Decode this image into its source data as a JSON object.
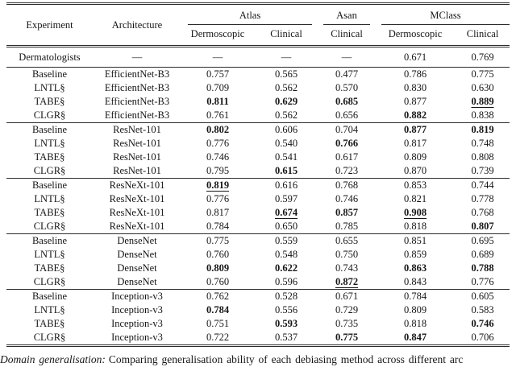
{
  "table": {
    "header": {
      "experiment": "Experiment",
      "architecture": "Architecture",
      "groups": [
        {
          "label": "Atlas",
          "subcolumns": [
            "Dermoscopic",
            "Clinical"
          ]
        },
        {
          "label": "Asan",
          "subcolumns": [
            "Clinical"
          ]
        },
        {
          "label": "MClass",
          "subcolumns": [
            "Dermoscopic",
            "Clinical"
          ]
        }
      ]
    },
    "dermatologists": {
      "experiment": "Dermatologists",
      "architecture": "—",
      "values": [
        {
          "text": "—",
          "bold": false,
          "underline": false
        },
        {
          "text": "—",
          "bold": false,
          "underline": false
        },
        {
          "text": "—",
          "bold": false,
          "underline": false
        },
        {
          "text": "0.671",
          "bold": false,
          "underline": false
        },
        {
          "text": "0.769",
          "bold": false,
          "underline": false
        }
      ]
    },
    "groups": [
      {
        "architecture": "EfficientNet-B3",
        "rows": [
          {
            "experiment": "Baseline",
            "values": [
              {
                "text": "0.757",
                "bold": false,
                "underline": false
              },
              {
                "text": "0.565",
                "bold": false,
                "underline": false
              },
              {
                "text": "0.477",
                "bold": false,
                "underline": false
              },
              {
                "text": "0.786",
                "bold": false,
                "underline": false
              },
              {
                "text": "0.775",
                "bold": false,
                "underline": false
              }
            ]
          },
          {
            "experiment": "LNTL§",
            "values": [
              {
                "text": "0.709",
                "bold": false,
                "underline": false
              },
              {
                "text": "0.562",
                "bold": false,
                "underline": false
              },
              {
                "text": "0.570",
                "bold": false,
                "underline": false
              },
              {
                "text": "0.830",
                "bold": false,
                "underline": false
              },
              {
                "text": "0.630",
                "bold": false,
                "underline": false
              }
            ]
          },
          {
            "experiment": "TABE§",
            "values": [
              {
                "text": "0.811",
                "bold": true,
                "underline": false
              },
              {
                "text": "0.629",
                "bold": true,
                "underline": false
              },
              {
                "text": "0.685",
                "bold": true,
                "underline": false
              },
              {
                "text": "0.877",
                "bold": false,
                "underline": false
              },
              {
                "text": "0.889",
                "bold": true,
                "underline": true
              }
            ]
          },
          {
            "experiment": "CLGR§",
            "values": [
              {
                "text": "0.761",
                "bold": false,
                "underline": false
              },
              {
                "text": "0.562",
                "bold": false,
                "underline": false
              },
              {
                "text": "0.656",
                "bold": false,
                "underline": false
              },
              {
                "text": "0.882",
                "bold": true,
                "underline": false
              },
              {
                "text": "0.838",
                "bold": false,
                "underline": false
              }
            ]
          }
        ]
      },
      {
        "architecture": "ResNet-101",
        "rows": [
          {
            "experiment": "Baseline",
            "values": [
              {
                "text": "0.802",
                "bold": true,
                "underline": false
              },
              {
                "text": "0.606",
                "bold": false,
                "underline": false
              },
              {
                "text": "0.704",
                "bold": false,
                "underline": false
              },
              {
                "text": "0.877",
                "bold": true,
                "underline": false
              },
              {
                "text": "0.819",
                "bold": true,
                "underline": false
              }
            ]
          },
          {
            "experiment": "LNTL§",
            "values": [
              {
                "text": "0.776",
                "bold": false,
                "underline": false
              },
              {
                "text": "0.540",
                "bold": false,
                "underline": false
              },
              {
                "text": "0.766",
                "bold": true,
                "underline": false
              },
              {
                "text": "0.817",
                "bold": false,
                "underline": false
              },
              {
                "text": "0.748",
                "bold": false,
                "underline": false
              }
            ]
          },
          {
            "experiment": "TABE§",
            "values": [
              {
                "text": "0.746",
                "bold": false,
                "underline": false
              },
              {
                "text": "0.541",
                "bold": false,
                "underline": false
              },
              {
                "text": "0.617",
                "bold": false,
                "underline": false
              },
              {
                "text": "0.809",
                "bold": false,
                "underline": false
              },
              {
                "text": "0.808",
                "bold": false,
                "underline": false
              }
            ]
          },
          {
            "experiment": "CLGR§",
            "values": [
              {
                "text": "0.795",
                "bold": false,
                "underline": false
              },
              {
                "text": "0.615",
                "bold": true,
                "underline": false
              },
              {
                "text": "0.723",
                "bold": false,
                "underline": false
              },
              {
                "text": "0.870",
                "bold": false,
                "underline": false
              },
              {
                "text": "0.739",
                "bold": false,
                "underline": false
              }
            ]
          }
        ]
      },
      {
        "architecture": "ResNeXt-101",
        "rows": [
          {
            "experiment": "Baseline",
            "values": [
              {
                "text": "0.819",
                "bold": true,
                "underline": true
              },
              {
                "text": "0.616",
                "bold": false,
                "underline": false
              },
              {
                "text": "0.768",
                "bold": false,
                "underline": false
              },
              {
                "text": "0.853",
                "bold": false,
                "underline": false
              },
              {
                "text": "0.744",
                "bold": false,
                "underline": false
              }
            ]
          },
          {
            "experiment": "LNTL§",
            "values": [
              {
                "text": "0.776",
                "bold": false,
                "underline": false
              },
              {
                "text": "0.597",
                "bold": false,
                "underline": false
              },
              {
                "text": "0.746",
                "bold": false,
                "underline": false
              },
              {
                "text": "0.821",
                "bold": false,
                "underline": false
              },
              {
                "text": "0.778",
                "bold": false,
                "underline": false
              }
            ]
          },
          {
            "experiment": "TABE§",
            "values": [
              {
                "text": "0.817",
                "bold": false,
                "underline": false
              },
              {
                "text": "0.674",
                "bold": true,
                "underline": true
              },
              {
                "text": "0.857",
                "bold": true,
                "underline": false
              },
              {
                "text": "0.908",
                "bold": true,
                "underline": true
              },
              {
                "text": "0.768",
                "bold": false,
                "underline": false
              }
            ]
          },
          {
            "experiment": "CLGR§",
            "values": [
              {
                "text": "0.784",
                "bold": false,
                "underline": false
              },
              {
                "text": "0.650",
                "bold": false,
                "underline": false
              },
              {
                "text": "0.785",
                "bold": false,
                "underline": false
              },
              {
                "text": "0.818",
                "bold": false,
                "underline": false
              },
              {
                "text": "0.807",
                "bold": true,
                "underline": false
              }
            ]
          }
        ]
      },
      {
        "architecture": "DenseNet",
        "rows": [
          {
            "experiment": "Baseline",
            "values": [
              {
                "text": "0.775",
                "bold": false,
                "underline": false
              },
              {
                "text": "0.559",
                "bold": false,
                "underline": false
              },
              {
                "text": "0.655",
                "bold": false,
                "underline": false
              },
              {
                "text": "0.851",
                "bold": false,
                "underline": false
              },
              {
                "text": "0.695",
                "bold": false,
                "underline": false
              }
            ]
          },
          {
            "experiment": "LNTL§",
            "values": [
              {
                "text": "0.760",
                "bold": false,
                "underline": false
              },
              {
                "text": "0.548",
                "bold": false,
                "underline": false
              },
              {
                "text": "0.750",
                "bold": false,
                "underline": false
              },
              {
                "text": "0.859",
                "bold": false,
                "underline": false
              },
              {
                "text": "0.689",
                "bold": false,
                "underline": false
              }
            ]
          },
          {
            "experiment": "TABE§",
            "values": [
              {
                "text": "0.809",
                "bold": true,
                "underline": false
              },
              {
                "text": "0.622",
                "bold": true,
                "underline": false
              },
              {
                "text": "0.743",
                "bold": false,
                "underline": false
              },
              {
                "text": "0.863",
                "bold": true,
                "underline": false
              },
              {
                "text": "0.788",
                "bold": true,
                "underline": false
              }
            ]
          },
          {
            "experiment": "CLGR§",
            "values": [
              {
                "text": "0.760",
                "bold": false,
                "underline": false
              },
              {
                "text": "0.596",
                "bold": false,
                "underline": false
              },
              {
                "text": "0.872",
                "bold": true,
                "underline": true
              },
              {
                "text": "0.843",
                "bold": false,
                "underline": false
              },
              {
                "text": "0.776",
                "bold": false,
                "underline": false
              }
            ]
          }
        ]
      },
      {
        "architecture": "Inception-v3",
        "rows": [
          {
            "experiment": "Baseline",
            "values": [
              {
                "text": "0.762",
                "bold": false,
                "underline": false
              },
              {
                "text": "0.528",
                "bold": false,
                "underline": false
              },
              {
                "text": "0.671",
                "bold": false,
                "underline": false
              },
              {
                "text": "0.784",
                "bold": false,
                "underline": false
              },
              {
                "text": "0.605",
                "bold": false,
                "underline": false
              }
            ]
          },
          {
            "experiment": "LNTL§",
            "values": [
              {
                "text": "0.784",
                "bold": true,
                "underline": false
              },
              {
                "text": "0.556",
                "bold": false,
                "underline": false
              },
              {
                "text": "0.729",
                "bold": false,
                "underline": false
              },
              {
                "text": "0.809",
                "bold": false,
                "underline": false
              },
              {
                "text": "0.583",
                "bold": false,
                "underline": false
              }
            ]
          },
          {
            "experiment": "TABE§",
            "values": [
              {
                "text": "0.751",
                "bold": false,
                "underline": false
              },
              {
                "text": "0.593",
                "bold": true,
                "underline": false
              },
              {
                "text": "0.735",
                "bold": false,
                "underline": false
              },
              {
                "text": "0.818",
                "bold": false,
                "underline": false
              },
              {
                "text": "0.746",
                "bold": true,
                "underline": false
              }
            ]
          },
          {
            "experiment": "CLGR§",
            "values": [
              {
                "text": "0.722",
                "bold": false,
                "underline": false
              },
              {
                "text": "0.537",
                "bold": false,
                "underline": false
              },
              {
                "text": "0.775",
                "bold": true,
                "underline": false
              },
              {
                "text": "0.847",
                "bold": true,
                "underline": false
              },
              {
                "text": "0.706",
                "bold": false,
                "underline": false
              }
            ]
          }
        ]
      }
    ]
  },
  "caption": {
    "label": "Domain generalisation:",
    "text": "Comparing generalisation ability of each debiasing method across different arc"
  }
}
